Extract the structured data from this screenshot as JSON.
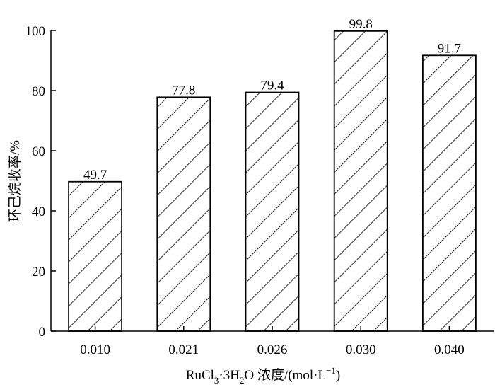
{
  "chart_data": {
    "type": "bar",
    "categories": [
      "0.010",
      "0.021",
      "0.026",
      "0.030",
      "0.040"
    ],
    "values": [
      49.7,
      77.8,
      79.4,
      99.8,
      91.7
    ],
    "data_labels": [
      "49.7",
      "77.8",
      "79.4",
      "99.8",
      "91.7"
    ],
    "y_ticks": [
      "0",
      "20",
      "40",
      "60",
      "80",
      "100"
    ],
    "ylim": [
      0,
      100
    ],
    "xlabel": {
      "base": "RuCl",
      "sub1": "3",
      "mid": "·3H",
      "sub2": "2",
      "tail": "O 浓度/(mol·L",
      "sup": "−1",
      "end": ")"
    },
    "ylabel": "环己烷收率/%",
    "bar_fill": "hatched",
    "grid": false
  }
}
